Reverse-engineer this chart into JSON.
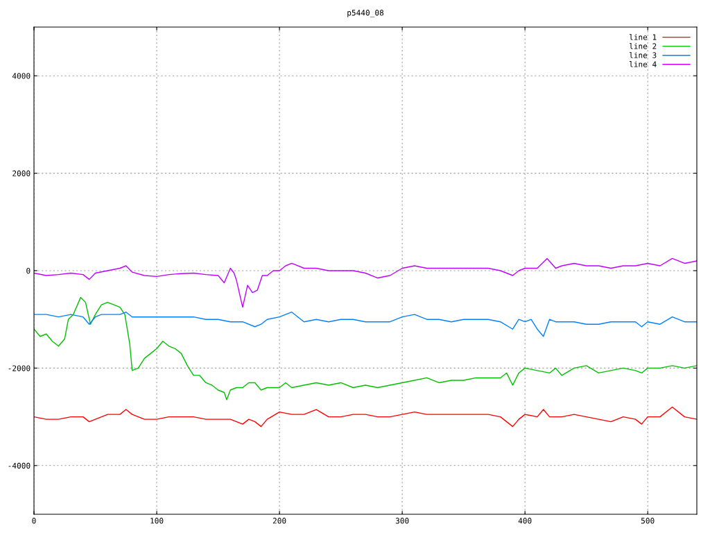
{
  "chart_data": {
    "type": "line",
    "title": "p5440_08",
    "xlim": [
      0,
      540
    ],
    "ylim": [
      -5000,
      5000
    ],
    "xticks": [
      0,
      100,
      200,
      300,
      400,
      500
    ],
    "yticks": [
      -4000,
      -2000,
      0,
      2000,
      4000
    ],
    "grid": true,
    "legend": "top right",
    "marker": "none",
    "line_style": "solid",
    "series": [
      {
        "name": "line 1",
        "color": "#ff0000",
        "x": [
          0,
          10,
          20,
          30,
          40,
          45,
          50,
          60,
          70,
          75,
          80,
          90,
          100,
          110,
          120,
          130,
          140,
          150,
          160,
          170,
          175,
          180,
          185,
          190,
          200,
          210,
          220,
          230,
          240,
          250,
          260,
          270,
          280,
          290,
          300,
          310,
          320,
          330,
          340,
          350,
          360,
          370,
          380,
          390,
          395,
          400,
          410,
          415,
          420,
          430,
          440,
          450,
          460,
          470,
          480,
          490,
          495,
          500,
          510,
          520,
          530,
          540
        ],
        "values": [
          -3000,
          -3050,
          -3050,
          -3000,
          -3000,
          -3100,
          -3050,
          -2950,
          -2950,
          -2850,
          -2950,
          -3050,
          -3050,
          -3000,
          -3000,
          -3000,
          -3050,
          -3050,
          -3050,
          -3150,
          -3050,
          -3100,
          -3200,
          -3050,
          -2900,
          -2950,
          -2950,
          -2850,
          -3000,
          -3000,
          -2950,
          -2950,
          -3000,
          -3000,
          -2950,
          -2900,
          -2950,
          -2950,
          -2950,
          -2950,
          -2950,
          -2950,
          -3000,
          -3200,
          -3050,
          -2950,
          -3000,
          -2850,
          -3000,
          -3000,
          -2950,
          -3000,
          -3050,
          -3100,
          -3000,
          -3050,
          -3150,
          -3000,
          -3000,
          -2800,
          -3000,
          -3050
        ]
      },
      {
        "name": "line 2",
        "color": "#00c000",
        "x": [
          0,
          5,
          10,
          15,
          20,
          25,
          28,
          32,
          38,
          42,
          46,
          50,
          55,
          60,
          65,
          70,
          74,
          78,
          80,
          85,
          90,
          95,
          100,
          105,
          110,
          115,
          120,
          125,
          130,
          135,
          140,
          145,
          150,
          155,
          157,
          160,
          165,
          170,
          175,
          180,
          185,
          190,
          200,
          205,
          210,
          220,
          230,
          240,
          250,
          260,
          270,
          280,
          290,
          300,
          310,
          320,
          330,
          340,
          350,
          360,
          370,
          380,
          385,
          390,
          395,
          400,
          410,
          420,
          425,
          430,
          440,
          450,
          460,
          470,
          480,
          490,
          495,
          500,
          510,
          520,
          530,
          540
        ],
        "values": [
          -1200,
          -1350,
          -1300,
          -1450,
          -1550,
          -1400,
          -1000,
          -900,
          -550,
          -650,
          -1100,
          -900,
          -700,
          -650,
          -700,
          -750,
          -900,
          -1500,
          -2050,
          -2000,
          -1800,
          -1700,
          -1600,
          -1450,
          -1550,
          -1600,
          -1700,
          -1950,
          -2150,
          -2150,
          -2300,
          -2350,
          -2450,
          -2500,
          -2650,
          -2450,
          -2400,
          -2400,
          -2300,
          -2300,
          -2450,
          -2400,
          -2400,
          -2300,
          -2400,
          -2350,
          -2300,
          -2350,
          -2300,
          -2400,
          -2350,
          -2400,
          -2350,
          -2300,
          -2250,
          -2200,
          -2300,
          -2250,
          -2250,
          -2200,
          -2200,
          -2200,
          -2100,
          -2350,
          -2100,
          -2000,
          -2050,
          -2100,
          -2000,
          -2150,
          -2000,
          -1950,
          -2100,
          -2050,
          -2000,
          -2050,
          -2100,
          -2000,
          -2000,
          -1950,
          -2000,
          -1950
        ]
      },
      {
        "name": "line 3",
        "color": "#0080ff",
        "x": [
          0,
          10,
          20,
          30,
          40,
          45,
          50,
          55,
          60,
          70,
          75,
          80,
          90,
          100,
          110,
          120,
          130,
          140,
          150,
          160,
          170,
          180,
          185,
          190,
          200,
          210,
          215,
          220,
          230,
          240,
          250,
          260,
          270,
          280,
          290,
          300,
          310,
          320,
          330,
          340,
          350,
          360,
          370,
          380,
          390,
          395,
          400,
          405,
          410,
          415,
          420,
          425,
          430,
          440,
          450,
          460,
          470,
          480,
          490,
          495,
          500,
          510,
          520,
          530,
          540
        ],
        "values": [
          -900,
          -900,
          -950,
          -900,
          -950,
          -1100,
          -950,
          -900,
          -900,
          -900,
          -850,
          -950,
          -950,
          -950,
          -950,
          -950,
          -950,
          -1000,
          -1000,
          -1050,
          -1050,
          -1150,
          -1100,
          -1000,
          -950,
          -850,
          -950,
          -1050,
          -1000,
          -1050,
          -1000,
          -1000,
          -1050,
          -1050,
          -1050,
          -950,
          -900,
          -1000,
          -1000,
          -1050,
          -1000,
          -1000,
          -1000,
          -1050,
          -1200,
          -1000,
          -1050,
          -1000,
          -1200,
          -1350,
          -1000,
          -1050,
          -1050,
          -1050,
          -1100,
          -1100,
          -1050,
          -1050,
          -1050,
          -1150,
          -1050,
          -1100,
          -950,
          -1050,
          -1050
        ]
      },
      {
        "name": "line 4",
        "color": "#c000ff",
        "x": [
          0,
          10,
          20,
          30,
          40,
          45,
          50,
          60,
          70,
          75,
          80,
          90,
          100,
          110,
          120,
          130,
          140,
          150,
          155,
          160,
          163,
          165,
          170,
          174,
          178,
          182,
          186,
          190,
          195,
          200,
          205,
          210,
          220,
          230,
          240,
          250,
          260,
          270,
          280,
          290,
          300,
          310,
          320,
          330,
          340,
          350,
          360,
          370,
          380,
          390,
          395,
          400,
          410,
          418,
          425,
          430,
          440,
          450,
          460,
          470,
          480,
          490,
          500,
          510,
          520,
          530,
          540
        ],
        "values": [
          -50,
          -100,
          -80,
          -50,
          -80,
          -180,
          -50,
          0,
          50,
          100,
          -30,
          -100,
          -120,
          -80,
          -60,
          -50,
          -80,
          -100,
          -250,
          50,
          -50,
          -200,
          -750,
          -300,
          -450,
          -400,
          -100,
          -100,
          0,
          0,
          100,
          150,
          50,
          50,
          0,
          0,
          0,
          -50,
          -150,
          -100,
          50,
          100,
          50,
          50,
          50,
          50,
          50,
          50,
          0,
          -100,
          0,
          50,
          50,
          250,
          50,
          100,
          150,
          100,
          100,
          50,
          100,
          100,
          150,
          100,
          250,
          150,
          200
        ]
      }
    ]
  }
}
